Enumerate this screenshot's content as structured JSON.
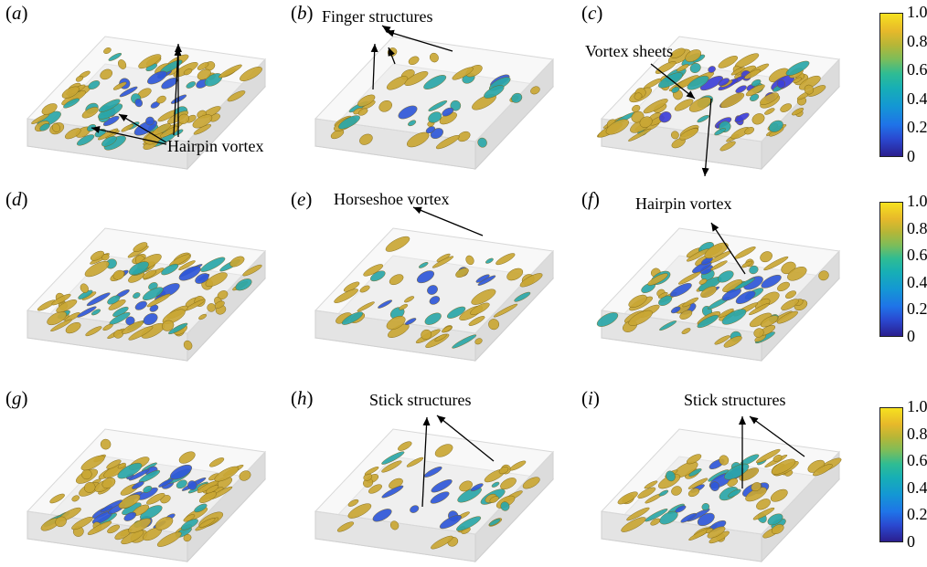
{
  "panels": [
    {
      "id": "a",
      "label": [
        "(",
        "a",
        ")"
      ],
      "colors": {
        "base": "#c9a634",
        "core": "#2f57d8",
        "mid": "#2aa6a8"
      },
      "density": 0.85
    },
    {
      "id": "b",
      "label": [
        "(",
        "b",
        ")"
      ],
      "colors": {
        "base": "#c9a634",
        "core": "#2f57d8",
        "mid": "#2aa6a8"
      },
      "density": 0.25
    },
    {
      "id": "c",
      "label": [
        "(",
        "c",
        ")"
      ],
      "colors": {
        "base": "#c9a634",
        "core": "#3d3fd8",
        "mid": "#2aa6a8"
      },
      "density": 1.0
    },
    {
      "id": "d",
      "label": [
        "(",
        "d",
        ")"
      ],
      "colors": {
        "base": "#c9a634",
        "core": "#2f57d8",
        "mid": "#2aa6a8"
      },
      "density": 0.8
    },
    {
      "id": "e",
      "label": [
        "(",
        "e",
        ")"
      ],
      "colors": {
        "base": "#c9a634",
        "core": "#2f57d8",
        "mid": "#2aa6a8"
      },
      "density": 0.35
    },
    {
      "id": "f",
      "label": [
        "(",
        "f",
        ")"
      ],
      "colors": {
        "base": "#c9a634",
        "core": "#2f57d8",
        "mid": "#2aa6a8"
      },
      "density": 0.75
    },
    {
      "id": "g",
      "label": [
        "(",
        "g",
        ")"
      ],
      "colors": {
        "base": "#c9a634",
        "core": "#2f57d8",
        "mid": "#2aa6a8"
      },
      "density": 0.85
    },
    {
      "id": "h",
      "label": [
        "(",
        "h",
        ")"
      ],
      "colors": {
        "base": "#c9a634",
        "core": "#2f57d8",
        "mid": "#2aa6a8"
      },
      "density": 0.3
    },
    {
      "id": "i",
      "label": [
        "(",
        "i",
        ")"
      ],
      "colors": {
        "base": "#c9a634",
        "core": "#2f57d8",
        "mid": "#2aa6a8"
      },
      "density": 0.6
    }
  ],
  "annotations": {
    "a": "Hairpin vortex",
    "b": "Finger structures",
    "c_sheets": "Vortex sheets",
    "c_hairpin": "Hairpin vortex",
    "e": "Horseshoe vortex",
    "h": "Stick structures",
    "i": "Stick structures"
  },
  "colorbar": {
    "ticks": [
      "1.0",
      "0.8",
      "0.6",
      "0.4",
      "0.2",
      "0"
    ],
    "colormap": "parula",
    "colors": {
      "low": "#2b1f8f",
      "high": "#f6e11f"
    }
  }
}
